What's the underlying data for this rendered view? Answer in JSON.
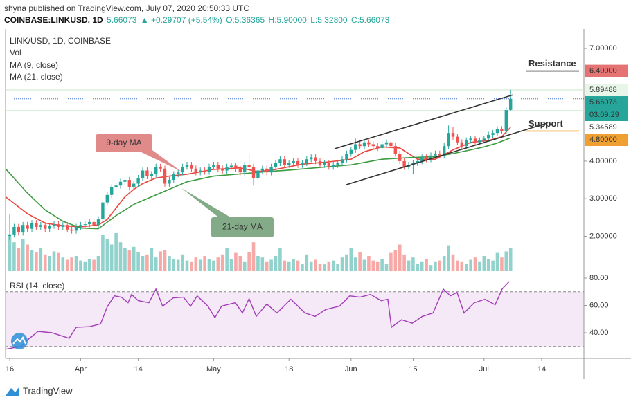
{
  "header": {
    "publisher": "shyna published on TradingView.com, July 07, 2020 20:50:33 UTC",
    "symbol": "COINBASE:LINKUSD, 1D",
    "last": "5.66073",
    "change": "▲ +0.29707 (+5.54%)",
    "open": "O:5.36365",
    "high": "H:5.90000",
    "low": "L:5.32800",
    "close": "C:5.66073"
  },
  "legend": [
    "LINK/USD, 1D, COINBASE",
    "Vol"
  ],
  "watermark": "TradingView",
  "chart_data": [
    {
      "type": "candlestick",
      "up_color": "#26a69a",
      "down_color": "#ef5350",
      "xlim": [
        -0.94,
        129.53
      ],
      "ylim": [
        1.07,
        7.516
      ],
      "yticks": [
        {
          "value": 2,
          "label": "2.00000"
        },
        {
          "value": 3,
          "label": "3.00000"
        },
        {
          "value": 4,
          "label": "4.00000"
        },
        {
          "value": 7,
          "label": "7.00000"
        }
      ],
      "xticks": [
        {
          "value": 0,
          "label": "16"
        },
        {
          "value": 16,
          "label": "Apr"
        },
        {
          "value": 29,
          "label": "14"
        },
        {
          "value": 46,
          "label": "May"
        },
        {
          "value": 63,
          "label": "18"
        },
        {
          "value": 77,
          "label": "Jun"
        },
        {
          "value": 91,
          "label": "15"
        },
        {
          "value": 107,
          "label": "Jul"
        },
        {
          "value": 120,
          "label": "14"
        }
      ],
      "ohlc": [
        [
          2.0,
          2.6,
          1.9,
          2.05
        ],
        [
          2.05,
          2.33,
          1.97,
          2.25
        ],
        [
          2.25,
          2.33,
          2.02,
          2.1
        ],
        [
          2.1,
          2.38,
          2.02,
          2.3
        ],
        [
          2.3,
          2.38,
          2.12,
          2.2
        ],
        [
          2.2,
          2.43,
          2.12,
          2.35
        ],
        [
          2.35,
          2.43,
          2.17,
          2.25
        ],
        [
          2.25,
          2.38,
          2.17,
          2.3
        ],
        [
          2.3,
          2.38,
          2.12,
          2.2
        ],
        [
          2.2,
          2.36,
          2.12,
          2.28
        ],
        [
          2.28,
          2.4,
          2.2,
          2.32
        ],
        [
          2.32,
          2.4,
          2.17,
          2.25
        ],
        [
          2.25,
          2.38,
          2.17,
          2.3
        ],
        [
          2.3,
          2.38,
          2.1,
          2.18
        ],
        [
          2.18,
          2.26,
          2.07,
          2.15
        ],
        [
          2.15,
          2.33,
          2.07,
          2.25
        ],
        [
          2.25,
          2.38,
          2.17,
          2.3
        ],
        [
          2.3,
          2.4,
          2.22,
          2.32
        ],
        [
          2.32,
          2.46,
          2.24,
          2.38
        ],
        [
          2.38,
          2.46,
          2.22,
          2.3
        ],
        [
          2.3,
          2.53,
          2.22,
          2.45
        ],
        [
          2.45,
          2.98,
          2.37,
          2.9
        ],
        [
          2.9,
          3.18,
          2.82,
          3.1
        ],
        [
          3.1,
          3.38,
          3.02,
          3.3
        ],
        [
          3.3,
          3.43,
          3.22,
          3.35
        ],
        [
          3.35,
          3.53,
          3.27,
          3.45
        ],
        [
          3.45,
          3.58,
          3.37,
          3.5
        ],
        [
          3.5,
          3.58,
          3.22,
          3.3
        ],
        [
          3.3,
          3.48,
          3.22,
          3.4
        ],
        [
          3.4,
          3.63,
          3.32,
          3.55
        ],
        [
          3.55,
          3.83,
          3.47,
          3.75
        ],
        [
          3.75,
          3.83,
          3.52,
          3.6
        ],
        [
          3.6,
          3.73,
          3.52,
          3.65
        ],
        [
          3.65,
          3.93,
          3.57,
          3.85
        ],
        [
          3.85,
          3.93,
          3.72,
          3.8
        ],
        [
          3.8,
          3.88,
          3.32,
          3.4
        ],
        [
          3.4,
          3.58,
          3.32,
          3.5
        ],
        [
          3.5,
          3.73,
          3.42,
          3.65
        ],
        [
          3.65,
          3.78,
          3.57,
          3.7
        ],
        [
          3.7,
          3.93,
          3.62,
          3.85
        ],
        [
          3.85,
          3.98,
          3.77,
          3.9
        ],
        [
          3.9,
          3.98,
          3.72,
          3.8
        ],
        [
          3.8,
          3.88,
          3.62,
          3.7
        ],
        [
          3.7,
          3.83,
          3.62,
          3.75
        ],
        [
          3.75,
          3.83,
          3.64,
          3.72
        ],
        [
          3.72,
          3.93,
          3.64,
          3.85
        ],
        [
          3.85,
          3.98,
          3.77,
          3.9
        ],
        [
          3.9,
          3.98,
          3.72,
          3.8
        ],
        [
          3.8,
          3.88,
          3.67,
          3.75
        ],
        [
          3.75,
          3.93,
          3.67,
          3.85
        ],
        [
          3.85,
          3.96,
          3.77,
          3.88
        ],
        [
          3.88,
          3.96,
          3.72,
          3.8
        ],
        [
          3.8,
          3.88,
          3.62,
          3.7
        ],
        [
          3.7,
          3.98,
          3.62,
          3.9
        ],
        [
          3.9,
          4.2,
          3.77,
          3.85
        ],
        [
          3.85,
          3.93,
          3.35,
          3.55
        ],
        [
          3.55,
          3.83,
          3.47,
          3.75
        ],
        [
          3.75,
          3.88,
          3.67,
          3.8
        ],
        [
          3.8,
          3.88,
          3.62,
          3.7
        ],
        [
          3.7,
          3.93,
          3.62,
          3.85
        ],
        [
          3.85,
          4.03,
          3.77,
          3.95
        ],
        [
          3.95,
          4.13,
          3.87,
          4.05
        ],
        [
          4.05,
          4.13,
          3.82,
          3.9
        ],
        [
          3.9,
          4.03,
          3.82,
          3.95
        ],
        [
          3.95,
          4.08,
          3.87,
          4.0
        ],
        [
          4.0,
          4.08,
          3.82,
          3.9
        ],
        [
          3.9,
          4.03,
          3.82,
          3.95
        ],
        [
          3.95,
          4.13,
          3.87,
          4.05
        ],
        [
          4.05,
          4.18,
          3.97,
          4.1
        ],
        [
          4.1,
          4.18,
          3.92,
          4.0
        ],
        [
          4.0,
          4.08,
          3.82,
          3.9
        ],
        [
          3.9,
          4.03,
          3.82,
          3.95
        ],
        [
          3.95,
          4.03,
          3.77,
          3.85
        ],
        [
          3.85,
          3.98,
          3.77,
          3.9
        ],
        [
          3.9,
          4.03,
          3.82,
          3.95
        ],
        [
          3.95,
          4.13,
          3.87,
          4.05
        ],
        [
          4.05,
          4.28,
          3.97,
          4.2
        ],
        [
          4.2,
          4.38,
          4.12,
          4.3
        ],
        [
          4.3,
          4.6,
          4.22,
          4.45
        ],
        [
          4.45,
          4.53,
          4.32,
          4.4
        ],
        [
          4.4,
          4.58,
          4.32,
          4.5
        ],
        [
          4.5,
          4.58,
          4.37,
          4.45
        ],
        [
          4.45,
          4.53,
          4.32,
          4.4
        ],
        [
          4.4,
          4.48,
          4.27,
          4.35
        ],
        [
          4.35,
          4.53,
          4.27,
          4.45
        ],
        [
          4.45,
          4.58,
          4.37,
          4.5
        ],
        [
          4.5,
          4.58,
          4.32,
          4.4
        ],
        [
          4.4,
          4.48,
          4.12,
          4.2
        ],
        [
          4.2,
          4.28,
          3.92,
          4.0
        ],
        [
          4.0,
          4.08,
          3.77,
          3.85
        ],
        [
          3.85,
          3.98,
          3.77,
          3.9
        ],
        [
          3.9,
          4.03,
          3.65,
          3.95
        ],
        [
          3.95,
          4.08,
          3.87,
          4.0
        ],
        [
          4.0,
          4.18,
          3.92,
          4.1
        ],
        [
          4.1,
          4.18,
          3.97,
          4.05
        ],
        [
          4.05,
          4.23,
          3.97,
          4.15
        ],
        [
          4.15,
          4.28,
          4.07,
          4.2
        ],
        [
          4.2,
          4.28,
          4.07,
          4.15
        ],
        [
          4.15,
          4.48,
          4.07,
          4.4
        ],
        [
          4.4,
          4.95,
          4.32,
          4.75
        ],
        [
          4.75,
          4.9,
          4.57,
          4.65
        ],
        [
          4.65,
          4.73,
          4.42,
          4.5
        ],
        [
          4.5,
          4.58,
          4.32,
          4.4
        ],
        [
          4.4,
          4.63,
          4.32,
          4.55
        ],
        [
          4.55,
          4.68,
          4.47,
          4.6
        ],
        [
          4.6,
          4.68,
          4.42,
          4.5
        ],
        [
          4.5,
          4.63,
          4.42,
          4.55
        ],
        [
          4.55,
          4.68,
          4.47,
          4.6
        ],
        [
          4.6,
          4.78,
          4.52,
          4.7
        ],
        [
          4.7,
          4.83,
          4.62,
          4.75
        ],
        [
          4.75,
          4.93,
          4.67,
          4.85
        ],
        [
          4.85,
          4.93,
          4.72,
          4.8
        ],
        [
          4.8,
          5.45,
          4.72,
          5.36
        ],
        [
          5.36365,
          5.9,
          5.328,
          5.66073
        ]
      ],
      "volume": [
        45,
        38,
        30,
        42,
        35,
        28,
        25,
        30,
        22,
        20,
        26,
        24,
        18,
        15,
        18,
        20,
        14,
        12,
        16,
        15,
        20,
        48,
        42,
        35,
        50,
        38,
        30,
        28,
        32,
        25,
        20,
        22,
        30,
        18,
        26,
        28,
        20,
        16,
        15,
        22,
        14,
        12,
        18,
        15,
        20,
        16,
        14,
        18,
        22,
        30,
        16,
        24,
        20,
        12,
        25,
        38,
        20,
        18,
        12,
        15,
        20,
        30,
        14,
        12,
        16,
        14,
        10,
        22,
        12,
        15,
        10,
        9,
        12,
        14,
        10,
        18,
        22,
        30,
        18,
        25,
        15,
        20,
        14,
        12,
        16,
        10,
        24,
        28,
        35,
        22,
        14,
        18,
        10,
        12,
        16,
        8,
        12,
        14,
        20,
        34,
        22,
        14,
        12,
        10,
        15,
        18,
        12,
        20,
        16,
        14,
        24,
        18,
        26,
        30
      ],
      "series": [
        {
          "name": "MA (9, close)",
          "color": "#e8453c",
          "x": [
            -0.94,
            4,
            8,
            12,
            16,
            20,
            22,
            24,
            26,
            28,
            30,
            33,
            36,
            40,
            46,
            52,
            56,
            60,
            66,
            72,
            77,
            80,
            84,
            88,
            92,
            96,
            100,
            104,
            108,
            111,
            113
          ],
          "values": [
            3.05,
            2.6,
            2.35,
            2.28,
            2.25,
            2.3,
            2.45,
            2.75,
            3.05,
            3.25,
            3.4,
            3.55,
            3.6,
            3.65,
            3.78,
            3.82,
            3.72,
            3.78,
            3.92,
            3.98,
            4.05,
            4.25,
            4.38,
            4.35,
            4.05,
            4.05,
            4.3,
            4.5,
            4.55,
            4.65,
            4.9
          ]
        },
        {
          "name": "MA (21, close)",
          "color": "#3c9a40",
          "x": [
            -0.94,
            4,
            8,
            12,
            16,
            20,
            24,
            28,
            32,
            36,
            40,
            46,
            52,
            58,
            63,
            70,
            77,
            84,
            91,
            96,
            100,
            104,
            107,
            110,
            113
          ],
          "values": [
            3.8,
            3.15,
            2.7,
            2.4,
            2.22,
            2.2,
            2.55,
            2.85,
            3.05,
            3.25,
            3.45,
            3.6,
            3.66,
            3.72,
            3.76,
            3.83,
            3.9,
            4.05,
            4.1,
            4.12,
            4.2,
            4.3,
            4.38,
            4.48,
            4.62
          ]
        }
      ],
      "price_labels": [
        {
          "value": 6.4,
          "label": "6.40000",
          "color": "#e57373",
          "text_color": "#ffffff"
        },
        {
          "value": 5.89488,
          "label": "5.89488",
          "color": "#e8f5e9",
          "text_color": "#333333",
          "line_color": "#c8e6c9"
        },
        {
          "value": 5.66073,
          "label": "5.66073",
          "color": "#26a69a",
          "text_color": "#ffffff",
          "line_color": "#3f6fd0",
          "line_dash": true,
          "countdown": "03:09:29"
        },
        {
          "value": 5.34589,
          "label": "5.34589",
          "color": "#ffffff",
          "text_color": "#333333",
          "line_color": "#c8e6c9"
        },
        {
          "value": 4.8,
          "label": "4.80000",
          "color": "#f0a030",
          "text_color": "#ffffff"
        }
      ],
      "levels": [
        {
          "name": "Resistance",
          "value": 6.4,
          "color": "#1a237e",
          "line_color": "#333333"
        },
        {
          "name": "Support",
          "value": 4.8,
          "color": "#a01010",
          "line_color": "#f0a030"
        }
      ],
      "annotations": [
        "9-day MA",
        "21-day MA"
      ]
    },
    {
      "type": "line",
      "xlim": [
        -0.94,
        129.53
      ],
      "ylim": [
        21.27,
        82.53
      ],
      "yticks": [
        {
          "value": 40,
          "label": "40.00"
        },
        {
          "value": 60,
          "label": "60.00"
        },
        {
          "value": 80,
          "label": "80.00"
        }
      ],
      "bands": [
        30,
        70
      ],
      "series": [
        {
          "name": "RSI (14, close)",
          "color": "#a23cb8",
          "x": [
            -0.9,
            2.5,
            4.1,
            6.4,
            9.5,
            13.4,
            15,
            18.1,
            20.5,
            22,
            23.6,
            25.2,
            26.7,
            27.5,
            29,
            31.4,
            33,
            34.5,
            36.9,
            39.2,
            40.8,
            42.3,
            44.7,
            46.3,
            47.8,
            50.9,
            52.5,
            54,
            55.6,
            58,
            60.3,
            63.4,
            66.6,
            68.9,
            71.3,
            74.4,
            76.7,
            79,
            81.4,
            83.8,
            85.3,
            86.1,
            88.4,
            90.8,
            93.1,
            95.5,
            97.8,
            99.4,
            100.9,
            102.5,
            104.8,
            107.2,
            109.5,
            111.1,
            112.7
          ],
          "values": [
            28,
            30,
            35,
            41,
            40,
            36,
            44,
            44.5,
            46.5,
            59,
            67,
            66,
            62,
            68,
            63.5,
            62,
            72,
            59.5,
            65.5,
            66,
            59.5,
            67,
            59.5,
            51,
            59.5,
            62,
            54.5,
            65,
            52,
            61,
            54.5,
            64.5,
            54.5,
            52,
            57,
            59.5,
            67,
            66,
            68,
            63.5,
            64.5,
            44,
            49.5,
            47,
            52,
            54.5,
            72,
            67,
            69.5,
            54.5,
            62,
            64.5,
            60.5,
            72,
            77.5
          ]
        }
      ]
    }
  ]
}
